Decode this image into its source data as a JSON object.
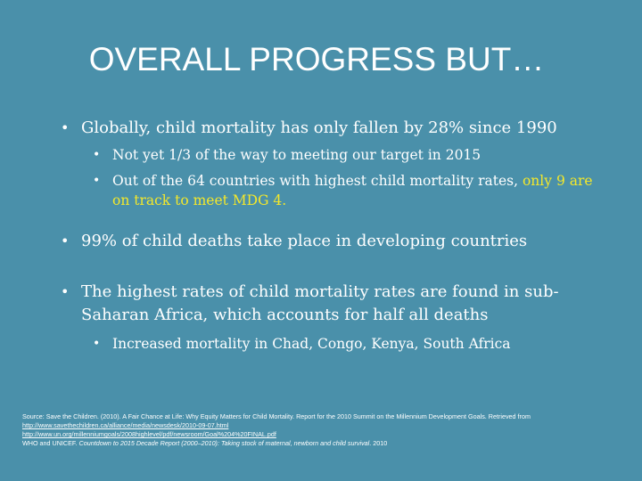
{
  "slide": {
    "title": "OVERALL PROGRESS BUT…",
    "bullets": [
      "Globally, child mortality has only fallen by 28% since 1990",
      "Not yet 1/3 of the way to meeting our target in 2015",
      "Out of the 64 countries with highest child mortality rates,",
      "only",
      "9 are on track to meet MDG 4.",
      "99% of child deaths take place in developing countries",
      "The highest rates of child mortality rates are found in sub-Saharan Africa, which accounts for half all deaths",
      "Increased mortality in Chad, Congo, Kenya, South Africa"
    ],
    "source": {
      "line1": "Source: Save the Children. (2010). A Fair Chance at Life: Why Equity Matters for Child Mortality. Report for the 2010 Summit on the Millennium Development Goals. Retrieved from",
      "link1": "http://www.savethechildren.ca/alliance/media/newsdesk/2010-09-07.html",
      "link2": "http://www.un.org/millenniumgoals/2008highlevel/pdf/newsroom/Goal%204%20FINAL.pdf",
      "line3_prefix": "WHO and UNICEF.",
      "line3_italic": "Countdown to 2015 Decade Report (2000–2010): Taking stock of maternal, newborn and child survival",
      "line3_suffix": ". 2010"
    },
    "colors": {
      "background": "#4a90aa",
      "text": "#ffffff",
      "highlight": "#f4e82a"
    }
  }
}
